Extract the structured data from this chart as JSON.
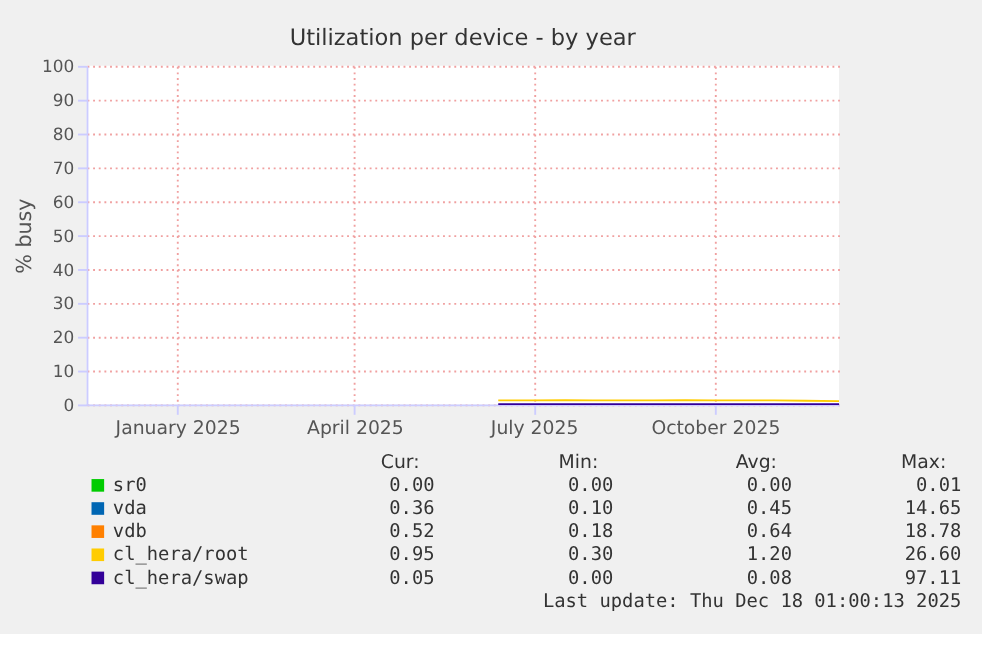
{
  "chart_data": {
    "type": "line",
    "title": "Utilization per device - by year",
    "ylabel": "% busy",
    "xlim": [
      "2024-12-01",
      "2025-12-18"
    ],
    "ylim": [
      0,
      100
    ],
    "xticks": [
      {
        "value": "2025-01-16",
        "label": "January 2025"
      },
      {
        "value": "2025-04-16",
        "label": "April 2025"
      },
      {
        "value": "2025-07-16",
        "label": "July 2025"
      },
      {
        "value": "2025-10-16",
        "label": "October 2025"
      }
    ],
    "yticks": [
      0,
      10,
      20,
      30,
      40,
      50,
      60,
      70,
      80,
      90,
      100
    ],
    "x": [
      "2025-06-28",
      "2025-07-15",
      "2025-08-01",
      "2025-08-15",
      "2025-09-01",
      "2025-09-15",
      "2025-10-01",
      "2025-10-15",
      "2025-11-01",
      "2025-11-15",
      "2025-12-01",
      "2025-12-18"
    ],
    "series": [
      {
        "name": "sr0",
        "color": "#00cc00",
        "values": [
          null,
          null,
          null,
          null,
          null,
          null,
          null,
          null,
          null,
          null,
          null,
          null
        ]
      },
      {
        "name": "vda",
        "color": "#0066b3",
        "values": [
          null,
          null,
          null,
          null,
          null,
          null,
          null,
          null,
          null,
          null,
          null,
          null
        ]
      },
      {
        "name": "vdb",
        "color": "#ff8000",
        "values": [
          null,
          null,
          null,
          null,
          null,
          null,
          null,
          null,
          null,
          null,
          null,
          null
        ]
      },
      {
        "name": "cl_hera/root",
        "color": "#ffcc00",
        "values": [
          1.2,
          1.2,
          1.3,
          1.2,
          1.2,
          1.2,
          1.3,
          1.2,
          1.2,
          1.2,
          1.1,
          1.0
        ]
      },
      {
        "name": "cl_hera/swap",
        "color": "#330099",
        "values": [
          0.1,
          0.1,
          0.1,
          0.1,
          0.1,
          0.1,
          0.1,
          0.1,
          0.1,
          0.1,
          0.1,
          0.1
        ]
      }
    ],
    "grid": true,
    "legend": "bottom left",
    "annotations": [
      "Cur:",
      "Min:",
      "Avg:",
      "Max:",
      "0.00",
      "0.00",
      "0.00",
      "0.01",
      "0.36",
      "0.10",
      "0.45",
      "14.65",
      "0.52",
      "0.18",
      "0.64",
      "18.78",
      "0.95",
      "0.30",
      "1.20",
      "26.60",
      "0.05",
      "0.00",
      "0.08",
      "97.11",
      "Last update: Thu Dec 18 01:00:13 2025"
    ]
  }
}
